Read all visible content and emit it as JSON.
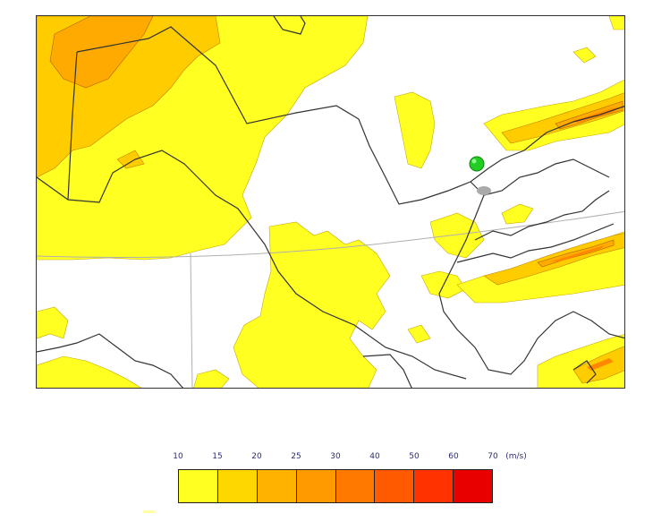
{
  "legend": {
    "ticks": [
      "10",
      "15",
      "20",
      "25",
      "30",
      "40",
      "50",
      "60",
      "70"
    ],
    "unit": "(m/s)",
    "colors": [
      "#ffff22",
      "#ffd700",
      "#ffb300",
      "#ff9a00",
      "#ff7800",
      "#ff5a00",
      "#ff3200",
      "#e80000"
    ]
  },
  "map": {
    "palette": {
      "yellow": "#ffff22",
      "light_orange": "#ffcc00",
      "orange": "#ffaa00",
      "deep_orange": "#ff8800",
      "border": "#333333",
      "graticule": "#b0b0b0",
      "marker": "#22cc22"
    },
    "marker_label": "green-marker"
  }
}
